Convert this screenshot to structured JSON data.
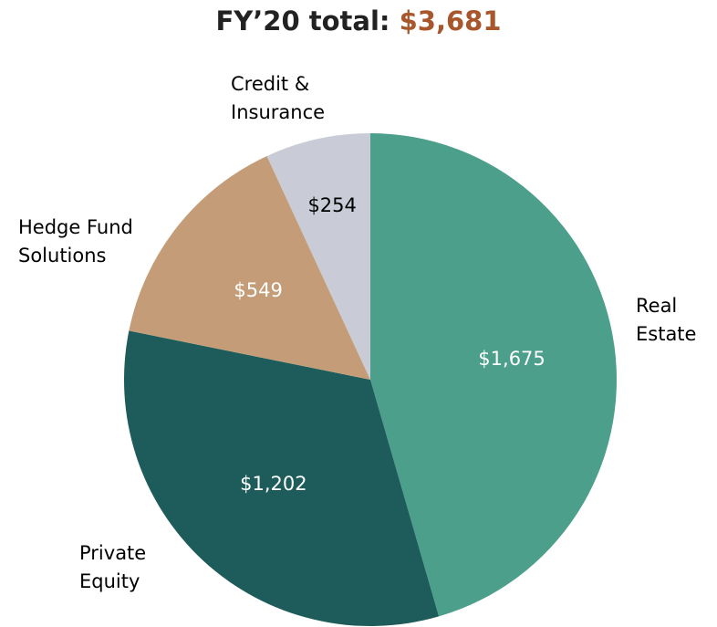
{
  "chart_data": {
    "type": "pie",
    "title": "FY’20 total:",
    "title_highlight": "$3,681",
    "title_highlight_color": "#a8572d",
    "categories": [
      "Real\nEstate",
      "Private\nEquity",
      "Hedge Fund\nSolutions",
      "Credit &\nInsurance"
    ],
    "values": [
      1675,
      1202,
      549,
      254
    ],
    "value_labels": [
      "$1,675",
      "$1,202",
      "$549",
      "$254"
    ],
    "colors": [
      "#4c9f8a",
      "#1d5c5a",
      "#c49d78",
      "#c9ccd6"
    ],
    "label_colors": [
      "#ffffff",
      "#ffffff",
      "#ffffff",
      "#000000"
    ]
  }
}
